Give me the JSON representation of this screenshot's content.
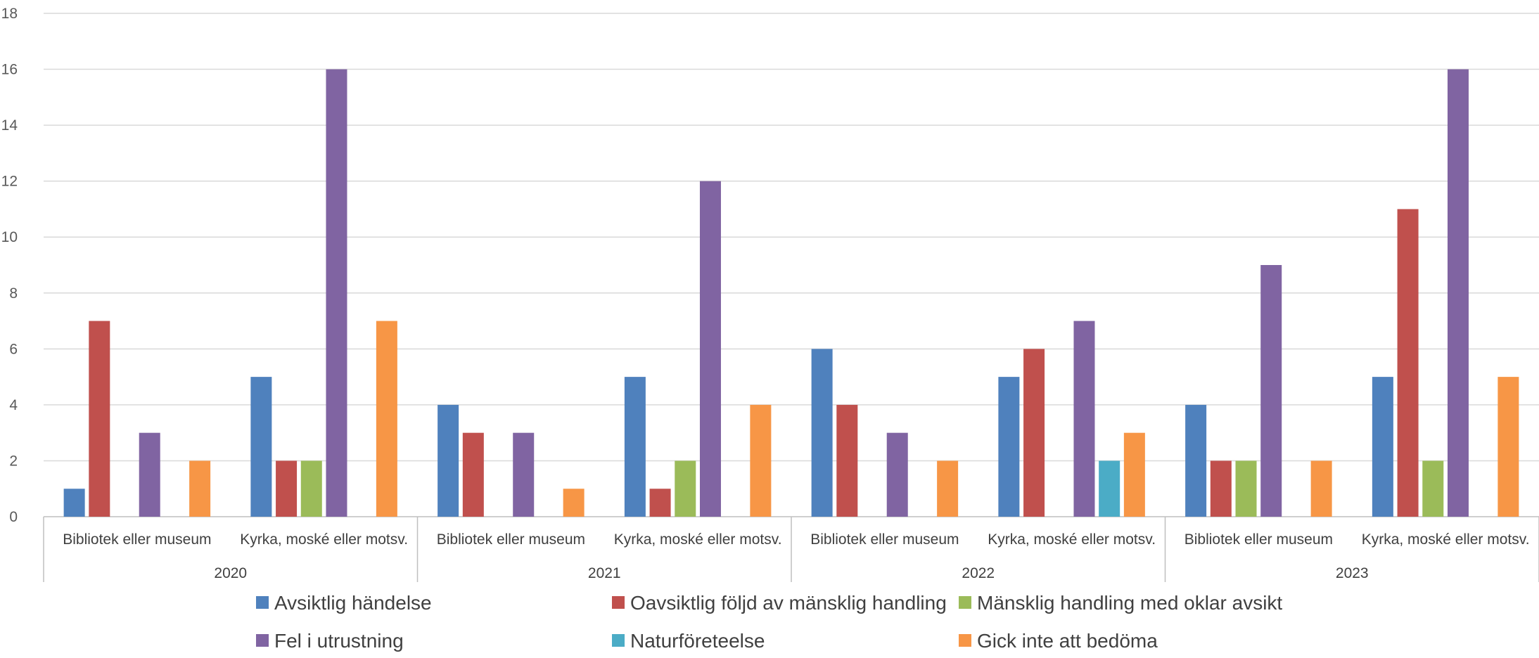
{
  "chart_data": {
    "type": "bar",
    "title": "",
    "xlabel": "",
    "ylabel": "",
    "ylim": [
      0,
      18
    ],
    "yticks": [
      0,
      2,
      4,
      6,
      8,
      10,
      12,
      14,
      16,
      18
    ],
    "grid": true,
    "legend_position": "bottom",
    "groups": [
      {
        "year": "2020",
        "categories": [
          "Bibliotek eller museum",
          "Kyrka, moské eller motsv."
        ]
      },
      {
        "year": "2021",
        "categories": [
          "Bibliotek eller museum",
          "Kyrka, moské eller motsv."
        ]
      },
      {
        "year": "2022",
        "categories": [
          "Bibliotek eller museum",
          "Kyrka, moské eller motsv."
        ]
      },
      {
        "year": "2023",
        "categories": [
          "Bibliotek eller museum",
          "Kyrka, moské eller motsv."
        ]
      }
    ],
    "series": [
      {
        "name": "Avsiktlig händelse",
        "color": "#4F81BD",
        "values": [
          1,
          5,
          4,
          5,
          6,
          5,
          4,
          5
        ]
      },
      {
        "name": "Oavsiktlig följd av mänsklig handling",
        "color": "#C0504D",
        "values": [
          7,
          2,
          3,
          1,
          4,
          6,
          2,
          11
        ]
      },
      {
        "name": "Mänsklig handling med oklar avsikt",
        "color": "#9BBB59",
        "values": [
          0,
          2,
          0,
          2,
          0,
          0,
          2,
          2
        ]
      },
      {
        "name": "Fel i utrustning",
        "color": "#8064A2",
        "values": [
          3,
          16,
          3,
          12,
          3,
          7,
          9,
          16
        ]
      },
      {
        "name": "Naturföreteelse",
        "color": "#4BACC6",
        "values": [
          0,
          0,
          0,
          0,
          0,
          2,
          0,
          0
        ]
      },
      {
        "name": "Gick inte att bedöma",
        "color": "#F79646",
        "values": [
          2,
          7,
          1,
          4,
          2,
          3,
          2,
          5
        ]
      }
    ]
  }
}
